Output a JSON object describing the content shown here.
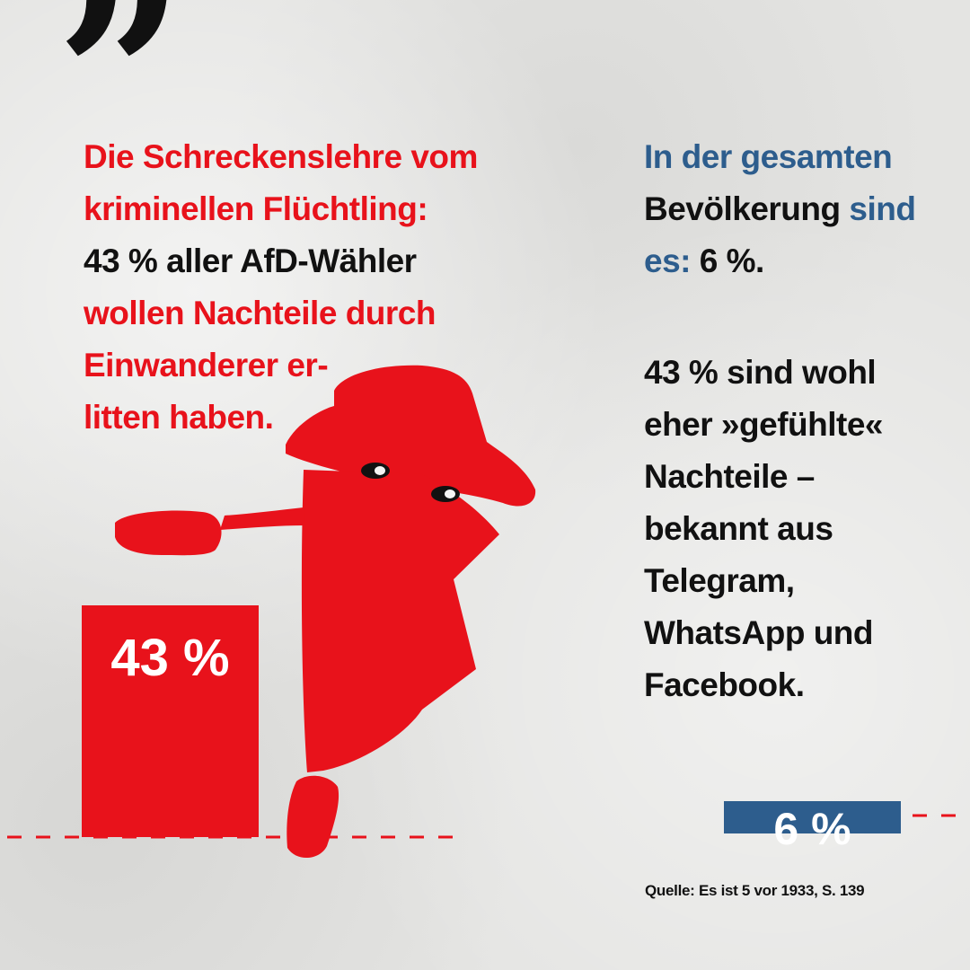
{
  "quote_mark": "”",
  "left_text": {
    "line1": "Die Schreckenslehre vom\nkriminellen Flüchtling:",
    "line2": "43 % aller AfD-Wähler",
    "line3": "wollen Nachteile durch\nEinwanderer er-\nlitten haben."
  },
  "right_text": {
    "part1": "In der gesamten",
    "part2": "Bevölkerung",
    "part3": "sind",
    "part4": "es:",
    "part5": "6 %.",
    "paragraph2": "43 % sind wohl\neher »gefühlte«\nNachteile –\nbekannt aus\nTelegram,\nWhatsApp und\nFacebook."
  },
  "source": "Quelle: Es ist 5 vor 1933, S. 139",
  "colors": {
    "red": "#e8121b",
    "blue": "#2d5d8d",
    "black": "#111111",
    "background": "#e4e4e2"
  },
  "chart_data": {
    "type": "bar",
    "categories": [
      "AfD-Wähler",
      "gesamte Bevölkerung"
    ],
    "values": [
      43,
      6
    ],
    "unit": "%",
    "data_labels": [
      "43 %",
      "6 %"
    ],
    "colors": [
      "#e8121b",
      "#2d5d8d"
    ]
  }
}
